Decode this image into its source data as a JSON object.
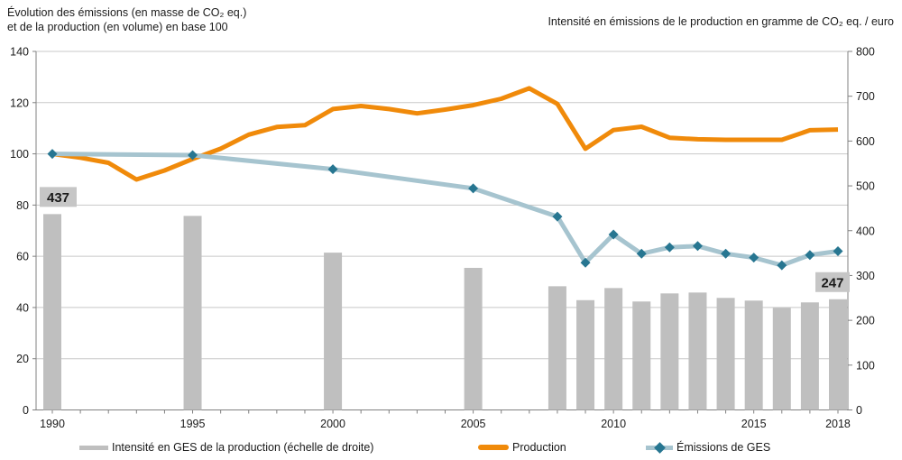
{
  "titles": {
    "left_line1": "Évolution des émissions (en masse de CO₂ eq.)",
    "left_line2": "et de la production (en volume) en base 100",
    "right": "Intensité en émissions de le production en gramme de CO₂ eq. / euro"
  },
  "legend": {
    "items": [
      {
        "label": "Intensité en GES de la production (échelle de droite)",
        "swatch": "gray-bar"
      },
      {
        "label": "Production",
        "swatch": "orange-line"
      },
      {
        "label": "Émissions de GES",
        "swatch": "blue-line-diamond"
      }
    ]
  },
  "colors": {
    "production": "#F08A0A",
    "emissions_line": "#A6C4CF",
    "emissions_marker": "#277691",
    "bars": "#BFBFBF",
    "grid": "#C8C8C8",
    "axis": "#808080",
    "text": "#1a1a1a",
    "annotation_bg": "#C6C6C6"
  },
  "chart_data": {
    "type": "combo: bar + line",
    "title": "",
    "left_axis": {
      "label": "base 100",
      "min": 0,
      "max": 140,
      "ticks": [
        0,
        20,
        40,
        60,
        80,
        100,
        120,
        140
      ]
    },
    "right_axis": {
      "label": "gramme de CO₂ eq. / euro",
      "min": 0,
      "max": 800,
      "ticks": [
        0,
        100,
        200,
        300,
        400,
        500,
        600,
        700,
        800
      ]
    },
    "x_axis": {
      "start": 1990,
      "end": 2018,
      "labeled_ticks": [
        1990,
        1995,
        2000,
        2005,
        2010,
        2015,
        2018
      ]
    },
    "grid": "horizontal-only",
    "legend_position": "bottom",
    "series": [
      {
        "name": "Intensité en GES de la production (échelle de droite)",
        "type": "bar",
        "axis": "right",
        "years": [
          1990,
          1995,
          2000,
          2005,
          2008,
          2009,
          2010,
          2011,
          2012,
          2013,
          2014,
          2015,
          2016,
          2017,
          2018
        ],
        "values": [
          437,
          433,
          351,
          317,
          276,
          245,
          272,
          242,
          260,
          262,
          250,
          244,
          228,
          240,
          247
        ]
      },
      {
        "name": "Production",
        "type": "line",
        "axis": "left",
        "years": [
          1990,
          1991,
          1992,
          1993,
          1994,
          1995,
          1996,
          1997,
          1998,
          1999,
          2000,
          2001,
          2002,
          2003,
          2004,
          2005,
          2006,
          2007,
          2008,
          2009,
          2010,
          2011,
          2012,
          2013,
          2014,
          2015,
          2016,
          2017,
          2018
        ],
        "values": [
          100,
          98.5,
          96.5,
          90,
          93.5,
          98,
          102,
          107.5,
          110.5,
          111.2,
          117.5,
          118.7,
          117.5,
          115.8,
          117.3,
          119,
          121.5,
          125.6,
          119.5,
          102,
          109.3,
          110.6,
          106.3,
          105.7,
          105.5,
          105.5,
          105.5,
          109.2,
          109.5
        ]
      },
      {
        "name": "Émissions de GES",
        "type": "line-with-diamond-markers",
        "axis": "left",
        "years": [
          1990,
          1995,
          2000,
          2005,
          2008,
          2009,
          2010,
          2011,
          2012,
          2013,
          2014,
          2015,
          2016,
          2017,
          2018
        ],
        "values": [
          100,
          99.5,
          94,
          86.5,
          75.5,
          57.5,
          68.5,
          61,
          63.5,
          64,
          61,
          59.5,
          56.5,
          60.5,
          62
        ]
      }
    ],
    "annotations": [
      {
        "text": "437",
        "year": 1990,
        "dx": -14,
        "w": 41
      },
      {
        "text": "247",
        "year": 2018,
        "dx": -25,
        "w": 38
      }
    ]
  }
}
